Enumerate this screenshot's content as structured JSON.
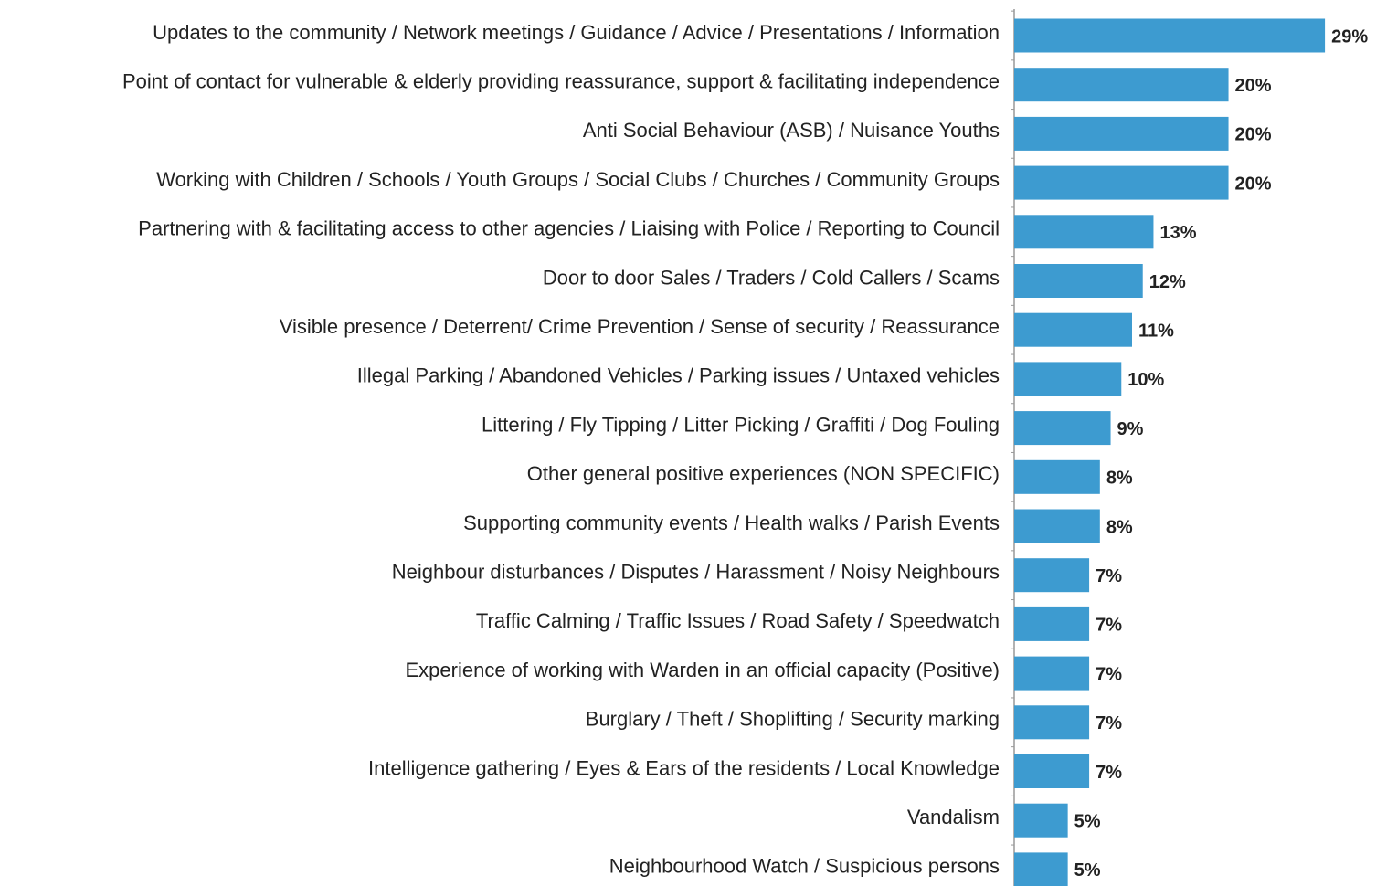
{
  "chart_data": {
    "type": "bar",
    "orientation": "horizontal",
    "color": "#3d9bd0",
    "categories": [
      "Updates to the community / Network meetings / Guidance / Advice / Presentations / Information",
      "Point of contact for vulnerable & elderly providing reassurance, support & facilitating independence",
      "Anti Social Behaviour (ASB) / Nuisance Youths",
      "Working with Children / Schools / Youth Groups / Social Clubs / Churches / Community Groups",
      "Partnering with & facilitating access to other agencies / Liaising with Police / Reporting to Council",
      "Door to door Sales / Traders / Cold Callers / Scams",
      "Visible presence / Deterrent/ Crime Prevention / Sense of security / Reassurance",
      "Illegal Parking  / Abandoned Vehicles / Parking issues / Untaxed vehicles",
      "Littering / Fly Tipping / Litter Picking / Graffiti / Dog Fouling",
      "Other general positive experiences (NON SPECIFIC)",
      "Supporting community events / Health walks  / Parish Events",
      "Neighbour disturbances / Disputes / Harassment / Noisy Neighbours",
      "Traffic Calming / Traffic Issues / Road Safety / Speedwatch",
      "Experience of working with Warden in an official capacity (Positive)",
      "Burglary / Theft / Shoplifting / Security marking",
      "Intelligence gathering / Eyes & Ears of the residents / Local Knowledge",
      "Vandalism",
      "Neighbourhood Watch / Suspicious persons"
    ],
    "values": [
      29,
      20,
      20,
      20,
      13,
      12,
      11,
      10,
      9,
      8,
      8,
      7,
      7,
      7,
      7,
      7,
      5,
      5
    ],
    "value_labels": [
      "29%",
      "20%",
      "20%",
      "20%",
      "13%",
      "12%",
      "11%",
      "10%",
      "9%",
      "8%",
      "8%",
      "7%",
      "7%",
      "7%",
      "7%",
      "7%",
      "5%",
      "5%"
    ],
    "xlim": [
      0,
      33
    ]
  }
}
